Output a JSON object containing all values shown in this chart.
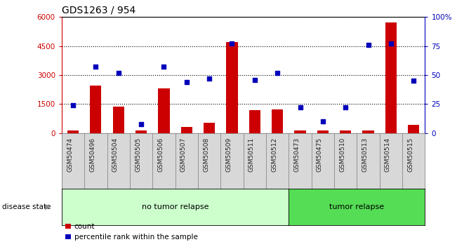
{
  "title": "GDS1263 / 954",
  "categories": [
    "GSM50474",
    "GSM50496",
    "GSM50504",
    "GSM50505",
    "GSM50506",
    "GSM50507",
    "GSM50508",
    "GSM50509",
    "GSM50511",
    "GSM50512",
    "GSM50473",
    "GSM50475",
    "GSM50510",
    "GSM50513",
    "GSM50514",
    "GSM50515"
  ],
  "count_values": [
    120,
    2450,
    1380,
    130,
    2320,
    330,
    550,
    4700,
    1170,
    1220,
    150,
    120,
    150,
    150,
    5700,
    430
  ],
  "percentile_values": [
    24,
    57,
    52,
    8,
    57,
    44,
    47,
    77,
    46,
    52,
    22,
    10,
    22,
    76,
    77,
    45
  ],
  "bar_color": "#cc0000",
  "dot_color": "#0000bb",
  "left_ylim": [
    0,
    6000
  ],
  "right_ylim": [
    0,
    100
  ],
  "left_yticks": [
    0,
    1500,
    3000,
    4500,
    6000
  ],
  "right_yticks": [
    0,
    25,
    50,
    75,
    100
  ],
  "right_yticklabels": [
    "0",
    "25",
    "50",
    "75",
    "100%"
  ],
  "no_tumor_count": 10,
  "tumor_relapse_count": 6,
  "no_tumor_label": "no tumor relapse",
  "tumor_relapse_label": "tumor relapse",
  "disease_state_label": "disease state",
  "legend_count_label": "count",
  "legend_percentile_label": "percentile rank within the sample",
  "no_tumor_color": "#ccffcc",
  "tumor_relapse_color": "#55dd55",
  "xtick_bg_color": "#d8d8d8",
  "left_axis_color": "#cc0000",
  "right_axis_color": "#0000bb",
  "grid_color": "#000000",
  "plot_bg_color": "#ffffff"
}
